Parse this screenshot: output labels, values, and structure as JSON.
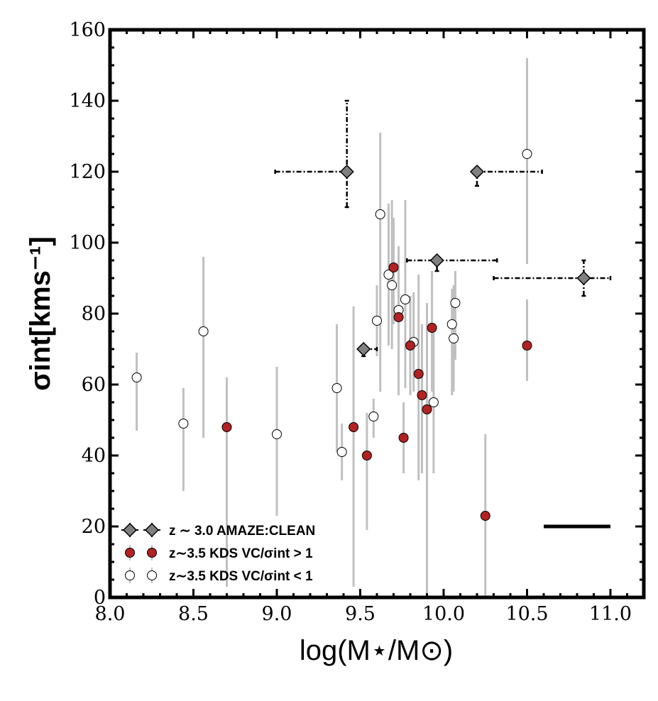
{
  "chart_data": {
    "type": "scatter",
    "xlabel": "log(M⋆/M⊙)",
    "ylabel": "σint[kms⁻¹]",
    "xlim": [
      8.0,
      11.2
    ],
    "ylim": [
      0,
      160
    ],
    "x_ticks": [
      8.0,
      8.5,
      9.0,
      9.5,
      10.0,
      10.5,
      11.0
    ],
    "x_tick_labels": [
      "8.0",
      "8.5",
      "9.0",
      "9.5",
      "10.0",
      "10.5",
      "11.0"
    ],
    "y_ticks": [
      0,
      20,
      40,
      60,
      80,
      100,
      120,
      140,
      160
    ],
    "y_tick_labels": [
      "0",
      "20",
      "40",
      "60",
      "80",
      "100",
      "120",
      "140",
      "160"
    ],
    "legend_position": "bottom-left",
    "scale_bar": {
      "x_start": 10.6,
      "x_end": 11.0,
      "y": 20
    },
    "series": [
      {
        "name": "z ∼ 3.0 AMAZE:CLEAN",
        "marker": "diamond",
        "color": "#808080",
        "points": [
          {
            "x": 9.42,
            "y": 120,
            "xerr": [
              0.43,
              0.0
            ],
            "yerr": [
              10,
              20
            ]
          },
          {
            "x": 10.2,
            "y": 120,
            "xerr": [
              0.0,
              0.39
            ],
            "yerr": [
              4,
              0
            ]
          },
          {
            "x": 9.96,
            "y": 95,
            "xerr": [
              0.18,
              0.36
            ],
            "yerr": [
              3,
              0
            ]
          },
          {
            "x": 10.84,
            "y": 90,
            "xerr": [
              0.54,
              0.16
            ],
            "yerr": [
              5,
              5
            ]
          },
          {
            "x": 9.52,
            "y": 70,
            "xerr": [
              0.0,
              0.08
            ],
            "yerr": [
              2,
              0
            ]
          }
        ]
      },
      {
        "name": "z∼3.5 KDS VC/σint > 1",
        "marker": "circle",
        "color": "#b22222",
        "points": [
          {
            "x": 8.7,
            "y": 48,
            "yerr": [
              45,
              14
            ]
          },
          {
            "x": 9.46,
            "y": 48,
            "yerr": [
              45,
              34
            ]
          },
          {
            "x": 9.54,
            "y": 40,
            "yerr": [
              21,
              12
            ]
          },
          {
            "x": 9.7,
            "y": 93,
            "yerr": [
              16,
              14
            ]
          },
          {
            "x": 9.73,
            "y": 79,
            "yerr": [
              22,
              20
            ]
          },
          {
            "x": 9.76,
            "y": 45,
            "yerr": [
              10,
              10
            ]
          },
          {
            "x": 9.8,
            "y": 71,
            "yerr": [
              14,
              14
            ]
          },
          {
            "x": 9.85,
            "y": 63,
            "yerr": [
              30,
              28
            ]
          },
          {
            "x": 9.87,
            "y": 57,
            "yerr": [
              22,
              20
            ]
          },
          {
            "x": 9.9,
            "y": 53,
            "yerr": [
              53,
              30
            ]
          },
          {
            "x": 9.93,
            "y": 76,
            "yerr": [
              18,
              16
            ]
          },
          {
            "x": 10.25,
            "y": 23,
            "yerr": [
              23,
              23
            ]
          },
          {
            "x": 10.5,
            "y": 71,
            "yerr": [
              10,
              13
            ]
          }
        ]
      },
      {
        "name": "z∼3.5 KDS VC/σint < 1",
        "marker": "circle",
        "color": "#ffffff",
        "points": [
          {
            "x": 8.16,
            "y": 62,
            "yerr": [
              15,
              7
            ]
          },
          {
            "x": 8.44,
            "y": 49,
            "yerr": [
              19,
              10
            ]
          },
          {
            "x": 8.56,
            "y": 75,
            "yerr": [
              30,
              21
            ]
          },
          {
            "x": 9.0,
            "y": 46,
            "yerr": [
              23,
              19
            ]
          },
          {
            "x": 9.36,
            "y": 59,
            "yerr": [
              18,
              18
            ]
          },
          {
            "x": 9.39,
            "y": 41,
            "yerr": [
              8,
              8
            ]
          },
          {
            "x": 9.58,
            "y": 51,
            "yerr": [
              6,
              5
            ]
          },
          {
            "x": 9.6,
            "y": 78,
            "yerr": [
              10,
              10
            ]
          },
          {
            "x": 9.62,
            "y": 108,
            "yerr": [
              50,
              23
            ]
          },
          {
            "x": 9.67,
            "y": 91,
            "yerr": [
              20,
              20
            ]
          },
          {
            "x": 9.69,
            "y": 88,
            "yerr": [
              18,
              24
            ]
          },
          {
            "x": 9.73,
            "y": 81,
            "yerr": [
              15,
              15
            ]
          },
          {
            "x": 9.77,
            "y": 84,
            "yerr": [
              25,
              28
            ]
          },
          {
            "x": 9.82,
            "y": 72,
            "yerr": [
              14,
              14
            ]
          },
          {
            "x": 9.94,
            "y": 55,
            "yerr": [
              20,
              20
            ]
          },
          {
            "x": 10.05,
            "y": 77,
            "yerr": [
              20,
              10
            ]
          },
          {
            "x": 10.06,
            "y": 73,
            "yerr": [
              15,
              15
            ]
          },
          {
            "x": 10.07,
            "y": 83,
            "yerr": [
              16,
              9
            ]
          },
          {
            "x": 10.5,
            "y": 125,
            "yerr": [
              31,
              27
            ]
          }
        ]
      }
    ]
  }
}
